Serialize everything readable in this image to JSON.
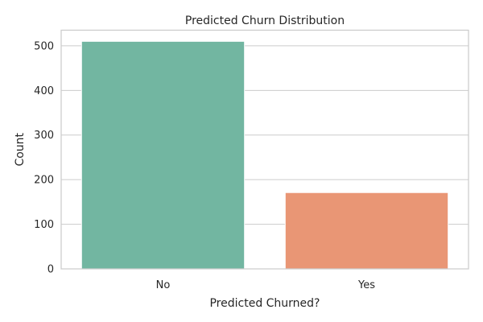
{
  "chart_data": {
    "type": "bar",
    "title": "Predicted Churn Distribution",
    "xlabel": "Predicted Churned?",
    "ylabel": "Count",
    "categories": [
      "No",
      "Yes"
    ],
    "values": [
      510,
      171
    ],
    "ylim": [
      0,
      535
    ],
    "yticks": [
      0,
      100,
      200,
      300,
      400,
      500
    ],
    "grid": true,
    "legend": "none",
    "colors": [
      "#72b6a1",
      "#e99675"
    ],
    "background": "#ffffff",
    "grid_color": "#cccccc"
  }
}
